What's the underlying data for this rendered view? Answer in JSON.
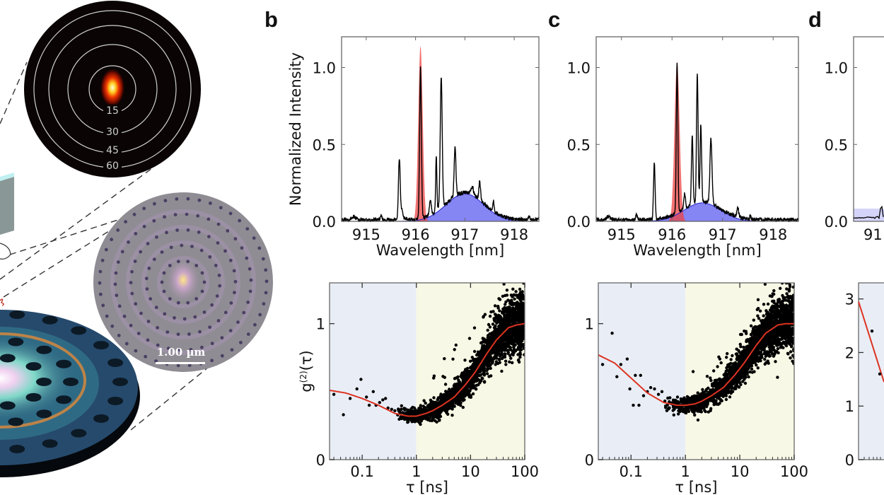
{
  "figure": {
    "panel_labels": [
      "b",
      "c",
      "d"
    ],
    "illustration": {
      "far_field_polar_labels": [
        "15",
        "30",
        "45",
        "60"
      ],
      "scale_bar_label": "1.00 µm",
      "colors": {
        "farfield_bg": "#0a0404",
        "farfield_ring": "#d0d0d0",
        "cavity_surface": "#8f8c93",
        "cavity_holes": "#4a3f63",
        "device_blue": "#264a6c",
        "device_edge": "#0a0f17"
      }
    }
  },
  "chart_data": [
    {
      "id": "b-spectrum",
      "panel": "b",
      "type": "line",
      "title": "",
      "xlabel": "Wavelength [nm]",
      "ylabel": "Normalized Intensity",
      "xlim": [
        914.5,
        918.5
      ],
      "ylim": [
        0,
        1.2
      ],
      "xticks": [
        915,
        916,
        917,
        918
      ],
      "xtick_labels": [
        "915",
        "916",
        "917",
        "918"
      ],
      "yticks": [
        0,
        0.5,
        1.0
      ],
      "ytick_labels": [
        "0.0",
        "0.5",
        "1.0"
      ],
      "grid": false,
      "series": [
        {
          "name": "measured spectrum",
          "kind": "line",
          "color": "#000000",
          "baseline": 0.01,
          "peaks": [
            [
              914.75,
              0.02,
              0.08
            ],
            [
              915.3,
              0.03,
              0.03
            ],
            [
              915.67,
              0.39,
              0.035
            ],
            [
              915.72,
              0.06,
              0.05
            ],
            [
              916.1,
              0.98,
              0.035
            ],
            [
              916.3,
              0.09,
              0.04
            ],
            [
              916.42,
              0.36,
              0.025
            ],
            [
              916.52,
              0.84,
              0.04
            ],
            [
              916.8,
              0.32,
              0.035
            ],
            [
              917.15,
              0.05,
              0.05
            ],
            [
              917.3,
              0.12,
              0.035
            ],
            [
              917.58,
              0.07,
              0.025
            ],
            [
              918.3,
              0.02,
              0.03
            ]
          ],
          "follows_background": true
        },
        {
          "name": "quantum-dot line (red fill)",
          "kind": "fill",
          "color": "#ee4444",
          "alpha": 0.75,
          "center": 916.1,
          "amplitude": 1.14,
          "width": 0.045
        },
        {
          "name": "cavity mode (blue fill)",
          "kind": "fill",
          "color": "#4444ee",
          "alpha": 0.65,
          "center": 917.0,
          "amplitude": 0.18,
          "width": 0.38
        }
      ]
    },
    {
      "id": "c-spectrum",
      "panel": "c",
      "type": "line",
      "title": "",
      "xlabel": "Wavelength [nm]",
      "ylabel": "",
      "xlim": [
        914.5,
        918.5
      ],
      "ylim": [
        0,
        1.2
      ],
      "xticks": [
        915,
        916,
        917,
        918
      ],
      "xtick_labels": [
        "915",
        "916",
        "917",
        "918"
      ],
      "yticks": [
        0,
        0.5,
        1.0
      ],
      "ytick_labels": [
        "0.0",
        "0.5",
        "1.0"
      ],
      "grid": false,
      "series": [
        {
          "name": "measured spectrum",
          "kind": "line",
          "color": "#000000",
          "baseline": 0.01,
          "peaks": [
            [
              914.75,
              0.02,
              0.08
            ],
            [
              915.3,
              0.03,
              0.03
            ],
            [
              915.65,
              0.37,
              0.03
            ],
            [
              916.1,
              0.98,
              0.03
            ],
            [
              916.25,
              0.1,
              0.03
            ],
            [
              916.4,
              0.45,
              0.03
            ],
            [
              916.5,
              0.84,
              0.03
            ],
            [
              916.57,
              0.5,
              0.03
            ],
            [
              916.77,
              0.42,
              0.04
            ],
            [
              917.3,
              0.06,
              0.035
            ],
            [
              917.55,
              0.03,
              0.02
            ]
          ],
          "follows_background": true
        },
        {
          "name": "quantum-dot line (red fill)",
          "kind": "fill",
          "color": "#ee4444",
          "alpha": 0.75,
          "center": 916.1,
          "amplitude": 1.04,
          "width": 0.05
        },
        {
          "name": "cavity mode (blue fill)",
          "kind": "fill",
          "color": "#4444ee",
          "alpha": 0.65,
          "center": 916.6,
          "amplitude": 0.12,
          "width": 0.36
        }
      ]
    },
    {
      "id": "b-g2",
      "panel": "b",
      "type": "scatter",
      "xscale": "log",
      "xlabel": "τ [ns]",
      "ylabel": "g(2)(τ)",
      "ylabel_parts": {
        "base": "g",
        "sup": "(2)",
        "tail": "(τ)"
      },
      "xlim": [
        0.025,
        100
      ],
      "ylim": [
        0,
        1.3
      ],
      "xticks": [
        0.1,
        1,
        10,
        100
      ],
      "xtick_labels": [
        "0.1",
        "1",
        "10",
        "100"
      ],
      "yticks": [
        0,
        1
      ],
      "ytick_labels": [
        "0",
        "1"
      ],
      "regions": [
        {
          "from": 0.025,
          "to": 1,
          "color": "#e9eef6"
        },
        {
          "from": 1,
          "to": 100,
          "color": "#f8f8e6"
        }
      ],
      "fit": {
        "name": "fit",
        "color": "#dd3322",
        "x": [
          0.025,
          0.05,
          0.1,
          0.2,
          0.4,
          0.7,
          1,
          1.5,
          2,
          3,
          5,
          8,
          12,
          20,
          30,
          50,
          70,
          100
        ],
        "y": [
          0.51,
          0.49,
          0.45,
          0.4,
          0.34,
          0.32,
          0.32,
          0.34,
          0.36,
          0.4,
          0.46,
          0.55,
          0.64,
          0.78,
          0.88,
          0.97,
          0.99,
          1.0
        ]
      },
      "sparse_points": [
        [
          0.03,
          0.48
        ],
        [
          0.045,
          0.33
        ],
        [
          0.06,
          0.45
        ],
        [
          0.08,
          0.52
        ],
        [
          0.095,
          0.59
        ],
        [
          0.12,
          0.46
        ],
        [
          0.135,
          0.4
        ],
        [
          0.16,
          0.5
        ],
        [
          0.18,
          0.4
        ],
        [
          0.21,
          0.42
        ],
        [
          0.24,
          0.44
        ],
        [
          0.27,
          0.45
        ],
        [
          0.3,
          0.38
        ],
        [
          0.35,
          0.37
        ],
        [
          0.4,
          0.36
        ]
      ],
      "dense_trend": "noisy points following fit from 0.4 to 100 ns, spread grows to about ±0.25 near 100 ns",
      "point_color": "#000000"
    },
    {
      "id": "c-g2",
      "panel": "c",
      "type": "scatter",
      "xscale": "log",
      "xlabel": "τ [ns]",
      "ylabel": "",
      "xlim": [
        0.025,
        100
      ],
      "ylim": [
        0,
        1.3
      ],
      "xticks": [
        0.1,
        1,
        10,
        100
      ],
      "xtick_labels": [
        "0.1",
        "1",
        "10",
        "100"
      ],
      "yticks": [
        0,
        1
      ],
      "ytick_labels": [
        "0",
        "1"
      ],
      "regions": [
        {
          "from": 0.025,
          "to": 1,
          "color": "#e9eef6"
        },
        {
          "from": 1,
          "to": 100,
          "color": "#f8f8e6"
        }
      ],
      "fit": {
        "name": "fit",
        "color": "#dd3322",
        "x": [
          0.025,
          0.05,
          0.1,
          0.2,
          0.4,
          0.7,
          1,
          1.5,
          2,
          3,
          5,
          8,
          12,
          20,
          30,
          50,
          70,
          100
        ],
        "y": [
          0.77,
          0.71,
          0.6,
          0.49,
          0.42,
          0.4,
          0.4,
          0.41,
          0.43,
          0.47,
          0.53,
          0.62,
          0.71,
          0.84,
          0.93,
          0.99,
          1.0,
          1.0
        ]
      },
      "sparse_points": [
        [
          0.03,
          0.7
        ],
        [
          0.045,
          0.93
        ],
        [
          0.055,
          0.61
        ],
        [
          0.065,
          0.7
        ],
        [
          0.085,
          0.74
        ],
        [
          0.095,
          0.52
        ],
        [
          0.11,
          0.4
        ],
        [
          0.12,
          0.62
        ],
        [
          0.14,
          0.4
        ],
        [
          0.15,
          0.62
        ],
        [
          0.17,
          0.47
        ],
        [
          0.2,
          0.5
        ],
        [
          0.23,
          0.53
        ],
        [
          0.27,
          0.52
        ],
        [
          0.32,
          0.48
        ],
        [
          0.37,
          0.5
        ]
      ],
      "dense_trend": "noisy points following fit from 0.4 to 100 ns, spread grows to about ±0.25 near 100 ns",
      "point_color": "#000000"
    },
    {
      "id": "d-spectrum-partial",
      "panel": "d",
      "type": "line",
      "partial": true,
      "xlim": [
        914.5,
        918.5
      ],
      "ylim": [
        0,
        1.2
      ],
      "yticks": [
        0,
        0.5,
        1.0
      ],
      "ytick_labels": [
        "0.0",
        "0.5",
        "1.0"
      ],
      "visible_xtick_label": "91"
    },
    {
      "id": "d-g2-partial",
      "panel": "d",
      "type": "scatter",
      "partial": true,
      "ylim": [
        0,
        3.3
      ],
      "yticks": [
        0,
        1,
        2,
        3
      ],
      "ytick_labels": [
        "0",
        "1",
        "2",
        "3"
      ],
      "visible_points": [
        [
          0.05,
          2.4
        ],
        [
          0.065,
          1.6
        ]
      ],
      "fit_start": 2.95
    }
  ]
}
